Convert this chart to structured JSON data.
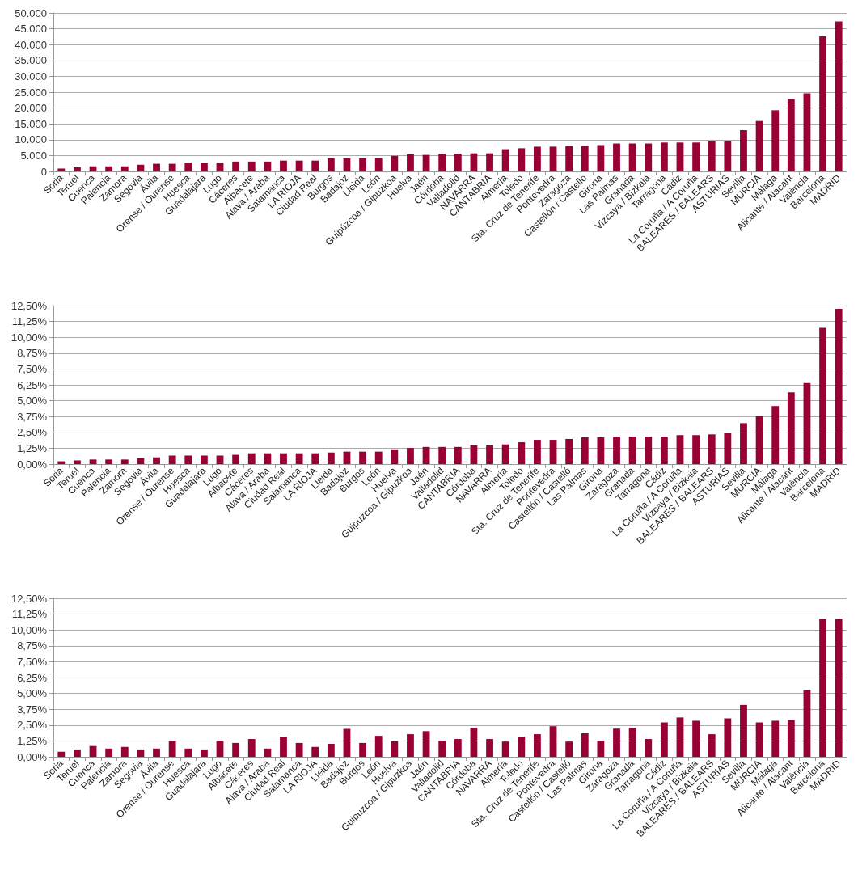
{
  "chart_data": [
    {
      "type": "bar",
      "color": "#990033",
      "grid": "y",
      "categories": [
        "Soria",
        "Teruel",
        "Cuenca",
        "Palencia",
        "Zamora",
        "Segovia",
        "Ávila",
        "Orense / Ourense",
        "Huesca",
        "Guadalajara",
        "Lugo",
        "Cáceres",
        "Albacete",
        "Álava / Araba",
        "Salamanca",
        "LA RIOJA",
        "Ciudad Real",
        "Burgos",
        "Badajoz",
        "Lleida",
        "León",
        "Guipúzcoa / Gipuzkoa",
        "Huelva",
        "Jaén",
        "Córdoba",
        "Valladolid",
        "NAVARRA",
        "CANTABRIA",
        "Almería",
        "Toledo",
        "Sta. Cruz de Tenerife",
        "Pontevedra",
        "Zaragoza",
        "Castellón / Castelló",
        "Girona",
        "Las Palmas",
        "Granada",
        "Vizcaya / Bizkaia",
        "Tarragona",
        "Cádiz",
        "La Coruña / A Coruña",
        "BALEARES / BALEARS",
        "ASTURIAS",
        "Sevilla",
        "MURCIA",
        "Málaga",
        "Alicante / Alacant",
        "València",
        "Barcelona",
        "MADRID"
      ],
      "values": [
        900,
        1300,
        1600,
        1600,
        1600,
        2100,
        2400,
        2400,
        2800,
        2800,
        2800,
        3100,
        3100,
        3100,
        3400,
        3400,
        3400,
        4100,
        4100,
        4100,
        4100,
        4900,
        5400,
        5200,
        5500,
        5500,
        5700,
        5700,
        7000,
        7300,
        7800,
        7800,
        8000,
        8000,
        8300,
        8800,
        8800,
        8800,
        9100,
        9100,
        9100,
        9500,
        9500,
        13000,
        15900,
        19300,
        22800,
        24600,
        42600,
        47300
      ],
      "ylim": [
        0,
        50000
      ],
      "yticks": [
        0,
        {
          "value": 5000,
          "label": "5.000"
        },
        {
          "value": 10000,
          "label": "10.000"
        },
        {
          "value": 15000,
          "label": "15.000"
        },
        {
          "value": 20000,
          "label": "20.000"
        },
        {
          "value": 25000,
          "label": "25.000"
        },
        {
          "value": 30000,
          "label": "30.000"
        },
        {
          "value": 35000,
          "label": "35.000"
        },
        {
          "value": 40000,
          "label": "40.000"
        },
        {
          "value": 45000,
          "label": "45.000"
        },
        {
          "value": 50000,
          "label": "50.000"
        }
      ]
    },
    {
      "type": "bar",
      "color": "#990033",
      "grid": "y",
      "categories": [
        "Soria",
        "Teruel",
        "Cuenca",
        "Palencia",
        "Zamora",
        "Segovia",
        "Ávila",
        "Orense / Ourense",
        "Huesca",
        "Guadalajara",
        "Lugo",
        "Albacete",
        "Cáceres",
        "Álava / Araba",
        "Ciudad Real",
        "Salamanca",
        "LA RIOJA",
        "Lleida",
        "Badajoz",
        "Burgos",
        "León",
        "Huelva",
        "Guipúzcoa / Gipuzkoa",
        "Jaén",
        "Valladolid",
        "CANTABRIA",
        "Córdoba",
        "NAVARRA",
        "Almería",
        "Toledo",
        "Sta. Cruz de Tenerife",
        "Pontevedra",
        "Castellón / Castelló",
        "Las Palmas",
        "Girona",
        "Zaragoza",
        "Granada",
        "Tarragona",
        "Cádiz",
        "La Coruña / A Coruña",
        "Vizcaya / Bizkaia",
        "BALEARES / BALEARS",
        "ASTURIAS",
        "Sevilla",
        "MURCIA",
        "Málaga",
        "Alicante / Alacant",
        "València",
        "Barcelona",
        "MADRID"
      ],
      "values": [
        0.22,
        0.29,
        0.36,
        0.36,
        0.36,
        0.47,
        0.53,
        0.67,
        0.67,
        0.67,
        0.67,
        0.73,
        0.85,
        0.85,
        0.85,
        0.85,
        0.85,
        0.91,
        0.98,
        0.98,
        0.98,
        1.16,
        1.27,
        1.35,
        1.35,
        1.35,
        1.48,
        1.48,
        1.55,
        1.72,
        1.91,
        1.91,
        1.98,
        2.11,
        2.11,
        2.17,
        2.17,
        2.17,
        2.17,
        2.28,
        2.28,
        2.34,
        2.43,
        3.23,
        3.78,
        4.58,
        5.66,
        6.39,
        10.75,
        12.24
      ],
      "ylim": [
        0,
        12.5
      ],
      "yticks": [
        {
          "value": 0,
          "label": "0,00%"
        },
        {
          "value": 1.25,
          "label": "1,25%"
        },
        {
          "value": 2.5,
          "label": "2,50%"
        },
        {
          "value": 3.75,
          "label": "3,75%"
        },
        {
          "value": 5,
          "label": "5,00%"
        },
        {
          "value": 6.25,
          "label": "6,25%"
        },
        {
          "value": 7.5,
          "label": "7,50%"
        },
        {
          "value": 8.75,
          "label": "8,75%"
        },
        {
          "value": 10,
          "label": "10,00%"
        },
        {
          "value": 11.25,
          "label": "11,25%"
        },
        {
          "value": 12.5,
          "label": "12,50%"
        }
      ]
    },
    {
      "type": "bar",
      "color": "#990033",
      "grid": "y",
      "categories": [
        "Soria",
        "Teruel",
        "Cuenca",
        "Palencia",
        "Zamora",
        "Segovia",
        "Ávila",
        "Orense / Ourense",
        "Huesca",
        "Guadalajara",
        "Lugo",
        "Albacete",
        "Cáceres",
        "Álava / Araba",
        "Ciudad Real",
        "Salamanca",
        "LA RIOJA",
        "Lleida",
        "Badajoz",
        "Burgos",
        "León",
        "Huelva",
        "Guipúzcoa / Gipuzkoa",
        "Jaén",
        "Valladolid",
        "CANTABRIA",
        "Córdoba",
        "NAVARRA",
        "Almería",
        "Toledo",
        "Sta. Cruz de Tenerife",
        "Pontevedra",
        "Castellón / Castelló",
        "Las Palmas",
        "Girona",
        "Zaragoza",
        "Granada",
        "Tarragona",
        "Cádiz",
        "La Coruña / A Coruña",
        "Vizcaya / Bizkaia",
        "BALEARES / BALEARS",
        "ASTURIAS",
        "Sevilla",
        "MURCIA",
        "Málaga",
        "Alicante / Alacant",
        "València",
        "Barcelona",
        "MADRID"
      ],
      "values": [
        0.4,
        0.58,
        0.85,
        0.65,
        0.78,
        0.58,
        0.65,
        1.27,
        0.65,
        0.58,
        1.27,
        1.09,
        1.4,
        0.65,
        1.58,
        1.09,
        0.78,
        1.02,
        2.2,
        1.09,
        1.65,
        1.22,
        1.78,
        2.02,
        1.27,
        1.4,
        2.28,
        1.4,
        1.2,
        1.59,
        1.78,
        2.41,
        1.2,
        1.85,
        1.27,
        2.22,
        2.28,
        1.4,
        2.71,
        3.1,
        2.84,
        1.78,
        3.03,
        4.09,
        2.71,
        2.84,
        2.9,
        5.27,
        10.88,
        10.88
      ],
      "ylim": [
        0,
        12.5
      ],
      "yticks": [
        {
          "value": 0,
          "label": "0,00%"
        },
        {
          "value": 1.25,
          "label": "1,25%"
        },
        {
          "value": 2.5,
          "label": "2,50%"
        },
        {
          "value": 3.75,
          "label": "3,75%"
        },
        {
          "value": 5,
          "label": "5,00%"
        },
        {
          "value": 6.25,
          "label": "6,25%"
        },
        {
          "value": 7.5,
          "label": "7,50%"
        },
        {
          "value": 8.75,
          "label": "8,75%"
        },
        {
          "value": 10,
          "label": "10,00%"
        },
        {
          "value": 11.25,
          "label": "11,25%"
        },
        {
          "value": 12.5,
          "label": "12,50%"
        }
      ]
    }
  ]
}
